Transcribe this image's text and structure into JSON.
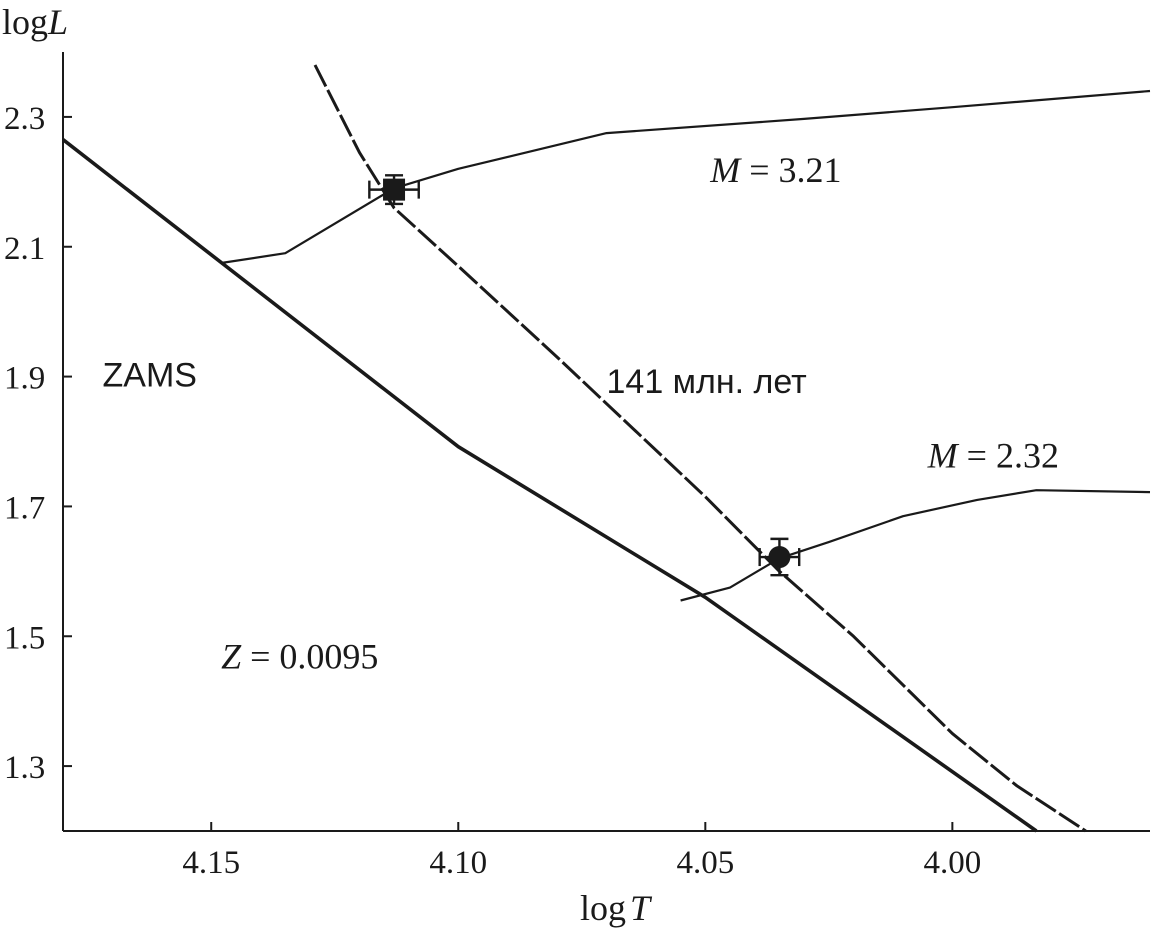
{
  "chart_data": {
    "type": "line",
    "xlabel_main": "log",
    "xlabel_var": "T",
    "ylabel_main": "log",
    "ylabel_var": "L",
    "xlim": [
      4.18,
      3.96
    ],
    "ylim": [
      1.2,
      2.4
    ],
    "x_reversed": true,
    "x_ticks": [
      4.15,
      4.1,
      4.05,
      4.0
    ],
    "x_tick_labels": [
      "4.15",
      "4.10",
      "4.05",
      "4.00"
    ],
    "y_ticks": [
      1.3,
      1.5,
      1.7,
      1.9,
      2.1,
      2.3
    ],
    "y_tick_labels": [
      "1.3",
      "1.5",
      "1.7",
      "1.9",
      "2.1",
      "2.3"
    ],
    "grid": false,
    "series": [
      {
        "name": "ZAMS",
        "style": "solid-thick",
        "x": [
          4.18,
          4.1,
          4.05,
          3.983
        ],
        "y": [
          2.265,
          1.792,
          1.56,
          1.2
        ]
      },
      {
        "name": "141 млн. лет",
        "style": "dashed",
        "x": [
          4.129,
          4.12,
          4.113,
          4.1,
          4.08,
          4.05,
          4.035,
          4.02,
          4.0,
          3.987,
          3.973
        ],
        "y": [
          2.38,
          2.245,
          2.16,
          2.07,
          1.93,
          1.715,
          1.6,
          1.5,
          1.35,
          1.27,
          1.2
        ]
      },
      {
        "name": "M = 3.21",
        "style": "solid-thin",
        "x": [
          4.148,
          4.135,
          4.113,
          4.1,
          4.07,
          4.03,
          4.0,
          3.96
        ],
        "y": [
          2.075,
          2.09,
          2.19,
          2.22,
          2.275,
          2.297,
          2.315,
          2.34
        ]
      },
      {
        "name": "M = 2.32",
        "style": "solid-thin",
        "x": [
          4.055,
          4.045,
          4.035,
          4.025,
          4.01,
          3.995,
          3.983,
          3.96
        ],
        "y": [
          1.555,
          1.575,
          1.62,
          1.645,
          1.685,
          1.71,
          1.725,
          1.722
        ]
      }
    ],
    "observations": [
      {
        "marker": "square",
        "x": 4.113,
        "y": 2.188,
        "x_err": 0.005,
        "y_err": 0.022
      },
      {
        "marker": "circle",
        "x": 4.035,
        "y": 1.622,
        "x_err": 0.004,
        "y_err": 0.028
      }
    ],
    "annotations": [
      {
        "id": "m321",
        "var": "M",
        "rest": " = 3.21",
        "x": 4.049,
        "y": 2.2
      },
      {
        "id": "m232",
        "var": "M",
        "rest": " = 2.32",
        "x": 4.005,
        "y": 1.76
      },
      {
        "id": "zams",
        "var": "",
        "rest": "ZAMS",
        "x": 4.172,
        "y": 1.885
      },
      {
        "id": "age",
        "var": "",
        "rest": "141 млн. лет",
        "x": 4.07,
        "y": 1.875
      },
      {
        "id": "z",
        "var": "Z",
        "rest": " = 0.0095",
        "x": 4.148,
        "y": 1.45
      }
    ]
  }
}
